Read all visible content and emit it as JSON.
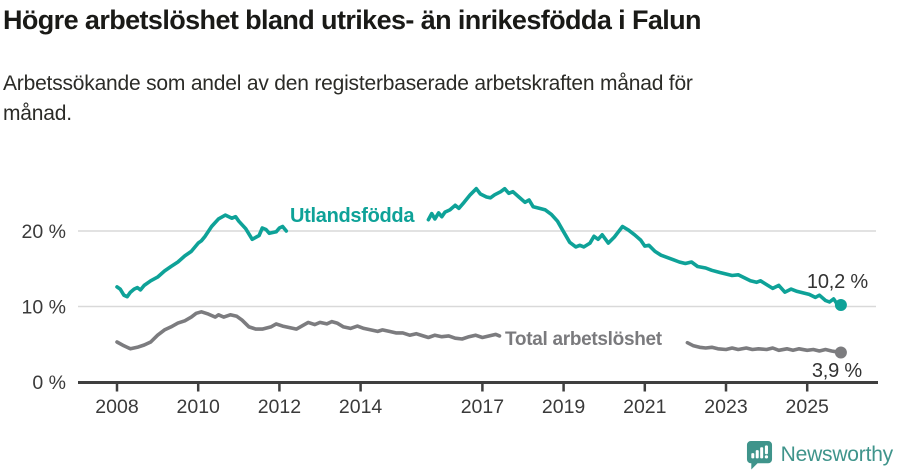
{
  "header": {
    "title": "Högre arbetslöshet bland utrikes- än inrikesfödda i Falun",
    "subtitle_lines": [
      "Arbetssökande som andel av den registerbaserade arbetskraften månad för",
      "månad."
    ]
  },
  "footer": {
    "brand": "Newsworthy",
    "brand_color": "#3f948b"
  },
  "colors": {
    "teal_series": "#0ea298",
    "gray_series": "#7c7c7f",
    "gray_label": "#7a7a7d",
    "axis_line": "#3f3f3f",
    "gridline": "#d9d9d9",
    "annotation_text": "#333333"
  },
  "chart_data": {
    "type": "line",
    "title": "Högre arbetslöshet bland utrikes- än inrikesfödda i Falun",
    "subtitle": "Arbetssökande som andel av den registerbaserade arbetskraften månad för månad.",
    "unit": "%",
    "grid": "horizontal",
    "legend_position": "inline-labels",
    "x_axis": {
      "range": [
        2007.6,
        2026.5
      ],
      "ticks": [
        {
          "label": "2008",
          "year": 2008
        },
        {
          "label": "2010",
          "year": 2010
        },
        {
          "label": "2012",
          "year": 2012
        },
        {
          "label": "2014",
          "year": 2014
        },
        {
          "label": "2017",
          "year": 2017
        },
        {
          "label": "2019",
          "year": 2019
        },
        {
          "label": "2021",
          "year": 2021
        },
        {
          "label": "2023",
          "year": 2023
        },
        {
          "label": "2025",
          "year": 2025
        }
      ]
    },
    "y_axis": {
      "range": [
        0,
        26.5
      ],
      "ticks": [
        {
          "label": "0 %",
          "value": 0
        },
        {
          "label": "10 %",
          "value": 10
        },
        {
          "label": "20 %",
          "value": 20
        }
      ]
    },
    "series": [
      {
        "name": "Utlandsfödda",
        "color": "#0ea298",
        "end_label": "10,2 %",
        "end_value": 10.2,
        "end_year": 2025.83,
        "segments": [
          [
            [
              2008.0,
              12.6
            ],
            [
              2008.08,
              12.3
            ],
            [
              2008.17,
              11.5
            ],
            [
              2008.25,
              11.3
            ],
            [
              2008.33,
              11.9
            ],
            [
              2008.42,
              12.3
            ],
            [
              2008.5,
              12.5
            ],
            [
              2008.58,
              12.2
            ],
            [
              2008.67,
              12.8
            ],
            [
              2008.83,
              13.4
            ],
            [
              2009.0,
              13.9
            ],
            [
              2009.17,
              14.7
            ],
            [
              2009.33,
              15.3
            ],
            [
              2009.5,
              15.9
            ],
            [
              2009.67,
              16.7
            ],
            [
              2009.83,
              17.3
            ],
            [
              2010.0,
              18.4
            ],
            [
              2010.08,
              18.7
            ],
            [
              2010.17,
              19.3
            ],
            [
              2010.33,
              20.6
            ],
            [
              2010.5,
              21.6
            ],
            [
              2010.67,
              22.1
            ],
            [
              2010.83,
              21.7
            ],
            [
              2010.92,
              21.9
            ],
            [
              2011.0,
              21.3
            ],
            [
              2011.17,
              20.3
            ],
            [
              2011.33,
              18.9
            ],
            [
              2011.5,
              19.4
            ],
            [
              2011.58,
              20.4
            ],
            [
              2011.67,
              20.2
            ],
            [
              2011.75,
              19.7
            ],
            [
              2011.92,
              19.9
            ],
            [
              2012.0,
              20.4
            ],
            [
              2012.08,
              20.6
            ],
            [
              2012.17,
              20.0
            ]
          ],
          [
            [
              2015.67,
              21.5
            ],
            [
              2015.75,
              22.3
            ],
            [
              2015.83,
              21.6
            ],
            [
              2015.92,
              22.4
            ],
            [
              2016.0,
              21.9
            ],
            [
              2016.08,
              22.5
            ],
            [
              2016.2,
              22.8
            ],
            [
              2016.33,
              23.4
            ],
            [
              2016.42,
              23.0
            ],
            [
              2016.55,
              23.8
            ],
            [
              2016.7,
              24.8
            ],
            [
              2016.85,
              25.6
            ],
            [
              2016.95,
              24.9
            ],
            [
              2017.1,
              24.5
            ],
            [
              2017.2,
              24.4
            ],
            [
              2017.3,
              24.8
            ],
            [
              2017.45,
              25.2
            ],
            [
              2017.55,
              25.6
            ],
            [
              2017.65,
              25.0
            ],
            [
              2017.75,
              25.2
            ],
            [
              2017.9,
              24.5
            ],
            [
              2018.05,
              23.8
            ],
            [
              2018.15,
              24.1
            ],
            [
              2018.25,
              23.2
            ],
            [
              2018.4,
              23.0
            ],
            [
              2018.55,
              22.8
            ],
            [
              2018.7,
              22.2
            ],
            [
              2018.85,
              21.3
            ],
            [
              2019.0,
              19.9
            ],
            [
              2019.15,
              18.5
            ],
            [
              2019.3,
              17.9
            ],
            [
              2019.4,
              18.1
            ],
            [
              2019.5,
              17.9
            ],
            [
              2019.65,
              18.4
            ],
            [
              2019.75,
              19.3
            ],
            [
              2019.85,
              18.9
            ],
            [
              2019.95,
              19.5
            ],
            [
              2020.1,
              18.4
            ],
            [
              2020.25,
              19.2
            ],
            [
              2020.35,
              19.9
            ],
            [
              2020.45,
              20.6
            ],
            [
              2020.6,
              20.1
            ],
            [
              2020.75,
              19.5
            ],
            [
              2020.9,
              18.8
            ],
            [
              2021.0,
              18.0
            ],
            [
              2021.1,
              18.1
            ],
            [
              2021.25,
              17.3
            ],
            [
              2021.4,
              16.8
            ],
            [
              2021.55,
              16.5
            ],
            [
              2021.7,
              16.2
            ],
            [
              2021.85,
              15.9
            ],
            [
              2022.0,
              15.7
            ],
            [
              2022.15,
              15.9
            ],
            [
              2022.3,
              15.3
            ],
            [
              2022.5,
              15.1
            ],
            [
              2022.65,
              14.8
            ],
            [
              2022.85,
              14.5
            ],
            [
              2023.0,
              14.3
            ],
            [
              2023.15,
              14.1
            ],
            [
              2023.3,
              14.2
            ],
            [
              2023.45,
              13.8
            ],
            [
              2023.6,
              13.4
            ],
            [
              2023.75,
              13.2
            ],
            [
              2023.85,
              13.4
            ],
            [
              2024.0,
              12.9
            ],
            [
              2024.15,
              12.4
            ],
            [
              2024.3,
              12.8
            ],
            [
              2024.45,
              11.9
            ],
            [
              2024.6,
              12.3
            ],
            [
              2024.75,
              12.0
            ],
            [
              2024.9,
              11.8
            ],
            [
              2025.05,
              11.6
            ],
            [
              2025.2,
              11.2
            ],
            [
              2025.3,
              11.5
            ],
            [
              2025.45,
              10.8
            ],
            [
              2025.55,
              10.6
            ],
            [
              2025.65,
              11.0
            ],
            [
              2025.73,
              10.4
            ],
            [
              2025.83,
              10.2
            ]
          ]
        ]
      },
      {
        "name": "Total arbetslöshet",
        "color": "#7c7c7f",
        "end_label": "3,9 %",
        "end_value": 3.9,
        "end_year": 2025.83,
        "segments": [
          [
            [
              2008.0,
              5.3
            ],
            [
              2008.17,
              4.8
            ],
            [
              2008.33,
              4.4
            ],
            [
              2008.5,
              4.6
            ],
            [
              2008.67,
              4.9
            ],
            [
              2008.83,
              5.3
            ],
            [
              2009.0,
              6.2
            ],
            [
              2009.17,
              6.9
            ],
            [
              2009.33,
              7.3
            ],
            [
              2009.5,
              7.8
            ],
            [
              2009.67,
              8.1
            ],
            [
              2009.83,
              8.6
            ],
            [
              2009.95,
              9.1
            ],
            [
              2010.08,
              9.3
            ],
            [
              2010.25,
              9.0
            ],
            [
              2010.42,
              8.6
            ],
            [
              2010.5,
              8.9
            ],
            [
              2010.63,
              8.6
            ],
            [
              2010.79,
              8.9
            ],
            [
              2010.95,
              8.7
            ],
            [
              2011.08,
              8.2
            ],
            [
              2011.25,
              7.3
            ],
            [
              2011.42,
              7.0
            ],
            [
              2011.58,
              7.0
            ],
            [
              2011.79,
              7.3
            ],
            [
              2011.92,
              7.7
            ],
            [
              2012.08,
              7.4
            ],
            [
              2012.25,
              7.2
            ],
            [
              2012.42,
              7.0
            ],
            [
              2012.58,
              7.5
            ],
            [
              2012.71,
              7.9
            ],
            [
              2012.87,
              7.6
            ],
            [
              2013.0,
              7.9
            ],
            [
              2013.17,
              7.7
            ],
            [
              2013.29,
              8.0
            ],
            [
              2013.42,
              7.8
            ],
            [
              2013.58,
              7.3
            ],
            [
              2013.75,
              7.1
            ],
            [
              2013.92,
              7.4
            ],
            [
              2014.08,
              7.1
            ],
            [
              2014.25,
              6.9
            ],
            [
              2014.42,
              6.7
            ],
            [
              2014.54,
              6.9
            ],
            [
              2014.71,
              6.7
            ],
            [
              2014.87,
              6.5
            ],
            [
              2015.04,
              6.5
            ],
            [
              2015.21,
              6.2
            ],
            [
              2015.37,
              6.4
            ],
            [
              2015.54,
              6.1
            ],
            [
              2015.67,
              5.9
            ],
            [
              2015.83,
              6.2
            ],
            [
              2016.0,
              6.0
            ],
            [
              2016.17,
              6.1
            ],
            [
              2016.33,
              5.8
            ],
            [
              2016.5,
              5.7
            ],
            [
              2016.67,
              6.0
            ],
            [
              2016.83,
              6.2
            ],
            [
              2017.0,
              5.9
            ],
            [
              2017.17,
              6.1
            ],
            [
              2017.33,
              6.3
            ],
            [
              2017.42,
              6.1
            ]
          ],
          [
            [
              2022.05,
              5.2
            ],
            [
              2022.2,
              4.8
            ],
            [
              2022.35,
              4.6
            ],
            [
              2022.5,
              4.5
            ],
            [
              2022.65,
              4.6
            ],
            [
              2022.8,
              4.4
            ],
            [
              2023.0,
              4.3
            ],
            [
              2023.15,
              4.5
            ],
            [
              2023.3,
              4.3
            ],
            [
              2023.5,
              4.5
            ],
            [
              2023.65,
              4.3
            ],
            [
              2023.8,
              4.4
            ],
            [
              2024.0,
              4.3
            ],
            [
              2024.15,
              4.5
            ],
            [
              2024.3,
              4.2
            ],
            [
              2024.5,
              4.4
            ],
            [
              2024.65,
              4.2
            ],
            [
              2024.8,
              4.4
            ],
            [
              2025.0,
              4.2
            ],
            [
              2025.15,
              4.3
            ],
            [
              2025.3,
              4.1
            ],
            [
              2025.45,
              4.3
            ],
            [
              2025.6,
              4.1
            ],
            [
              2025.72,
              4.0
            ],
            [
              2025.83,
              3.9
            ]
          ]
        ]
      }
    ]
  }
}
